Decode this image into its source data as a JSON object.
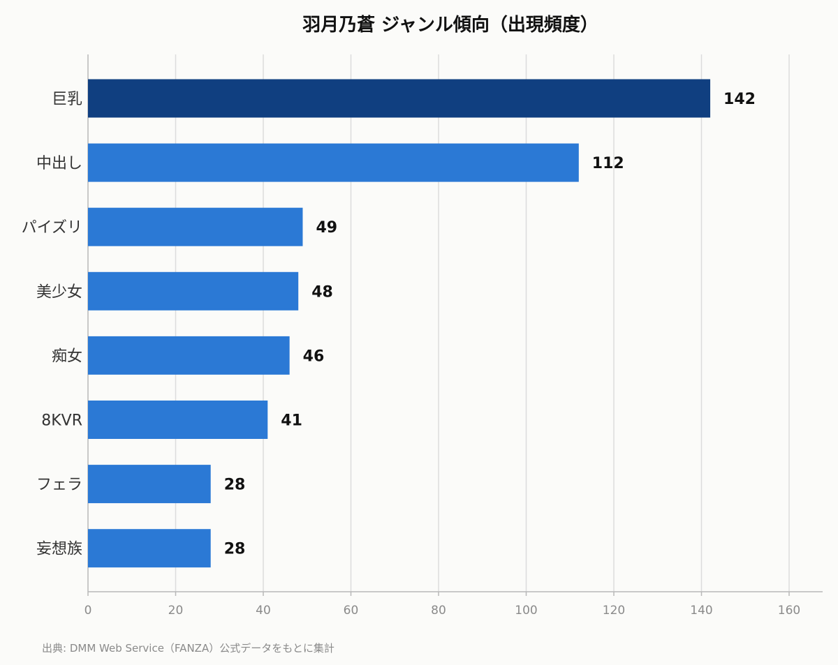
{
  "chart_data": {
    "type": "bar",
    "orientation": "horizontal",
    "title": "羽月乃蒼 ジャンル傾向（出現頻度）",
    "categories": [
      "巨乳",
      "中出し",
      "パイズリ",
      "美少女",
      "痴女",
      "8KVR",
      "フェラ",
      "妄想族"
    ],
    "values": [
      142,
      112,
      49,
      48,
      46,
      41,
      28,
      28
    ],
    "xlim": [
      0,
      160
    ],
    "xticks": [
      0,
      20,
      40,
      60,
      80,
      100,
      120,
      140,
      160
    ],
    "grid": true,
    "colors": {
      "highlight": "#103f80",
      "bar": "#2b79d5"
    }
  },
  "source_note": "出典: DMM Web Service（FANZA）公式データをもとに集計"
}
